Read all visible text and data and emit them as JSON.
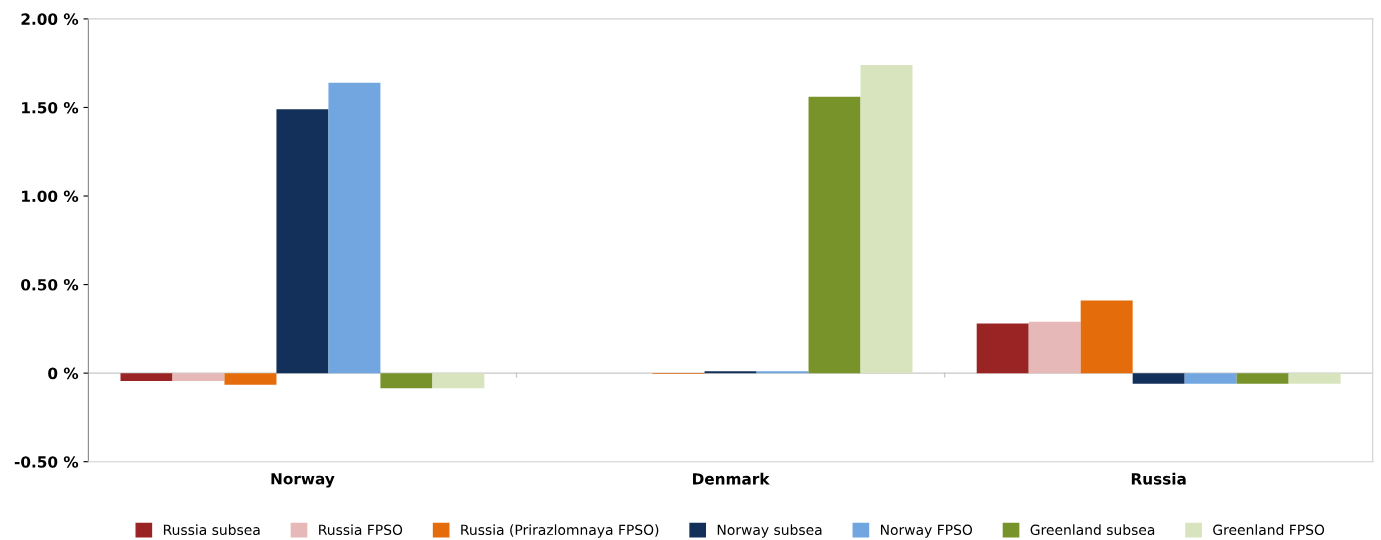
{
  "chart_data": {
    "type": "bar",
    "categories": [
      "Norway",
      "Denmark",
      "Russia"
    ],
    "series": [
      {
        "name": "Russia subsea",
        "color": "#9a2424",
        "values": [
          -0.045,
          0.0,
          0.28
        ]
      },
      {
        "name": "Russia FPSO",
        "color": "#e6b8b7",
        "values": [
          -0.045,
          0.0,
          0.29
        ]
      },
      {
        "name": "Russia (Prirazlomnaya FPSO)",
        "color": "#e46c0a",
        "values": [
          -0.065,
          -0.005,
          0.41
        ]
      },
      {
        "name": "Norway subsea",
        "color": "#13305a",
        "values": [
          1.49,
          0.01,
          -0.06
        ]
      },
      {
        "name": "Norway FPSO",
        "color": "#71a6e0",
        "values": [
          1.64,
          0.01,
          -0.06
        ]
      },
      {
        "name": "Greenland subsea",
        "color": "#77932a",
        "values": [
          -0.085,
          1.56,
          -0.06
        ]
      },
      {
        "name": "Greenland FPSO",
        "color": "#d7e4bd",
        "values": [
          -0.085,
          1.74,
          -0.06
        ]
      }
    ],
    "ylim": [
      -0.5,
      2.0
    ],
    "yticks": [
      {
        "value": -0.5,
        "label": "-0.50 %"
      },
      {
        "value": 0,
        "label": "0 %"
      },
      {
        "value": 0.5,
        "label": "0.50 %"
      },
      {
        "value": 1.0,
        "label": "1.00 %"
      },
      {
        "value": 1.5,
        "label": "1.50 %"
      },
      {
        "value": 2.0,
        "label": "2.00 %"
      }
    ],
    "ref_lines": [
      {
        "axis": "y",
        "value": 0,
        "label": null,
        "color": "#c8c8c8"
      }
    ],
    "grid": false,
    "legend": "bottom"
  }
}
